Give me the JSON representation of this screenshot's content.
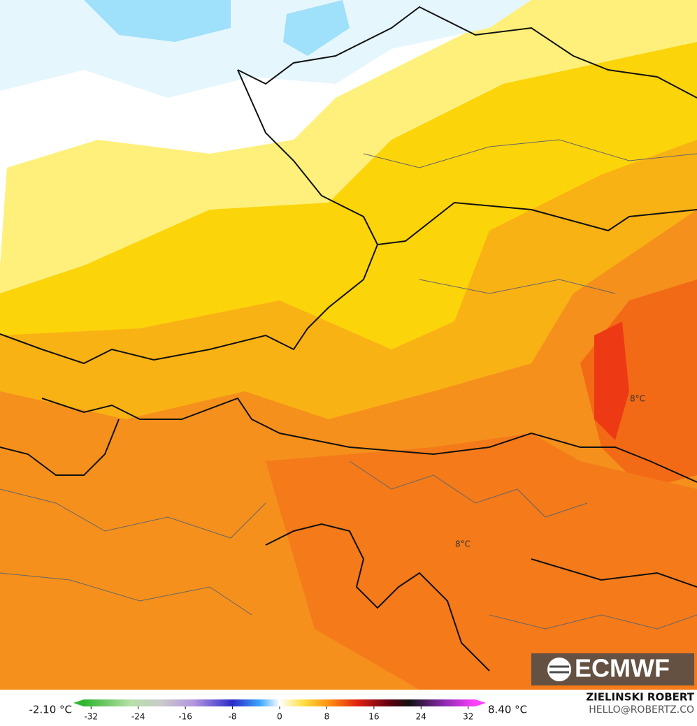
{
  "map": {
    "contour_labels": [
      "8°C",
      "8°C"
    ],
    "logo": "ECMWF",
    "author": "ZIELINSKI ROBERT",
    "contact": "HELLO@ROBERTZ.CO"
  },
  "colorbar": {
    "min_label": "-2.10 °C",
    "max_label": "8.40 °C",
    "range": [
      -35,
      35
    ],
    "ticks": [
      -32,
      -24,
      -16,
      -8,
      0,
      8,
      16,
      24,
      32
    ]
  }
}
